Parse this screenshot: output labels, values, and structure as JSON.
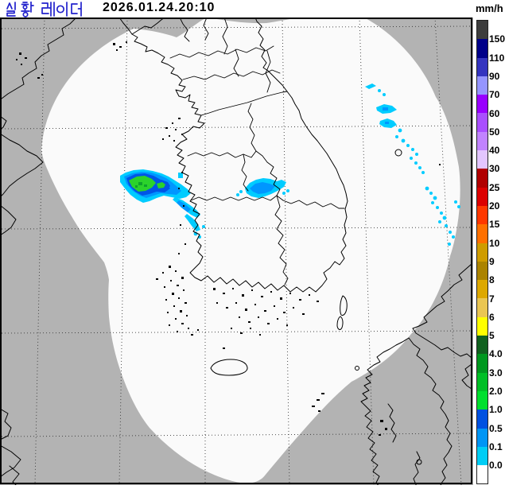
{
  "header": {
    "title": "실황 레이더",
    "timestamp": "2026.01.24.20:10",
    "unit_label": "mm/h"
  },
  "legend": {
    "unit": "mm/h",
    "labels": [
      "150",
      "110",
      "90",
      "70",
      "60",
      "50",
      "40",
      "30",
      "25",
      "20",
      "15",
      "10",
      "9",
      "8",
      "7",
      "6",
      "5",
      "4.0",
      "3.0",
      "2.0",
      "1.0",
      "0.5",
      "0.1",
      "0.0"
    ],
    "colors": [
      "#3d3d3d",
      "#000089",
      "#3434bf",
      "#9595ff",
      "#9800ff",
      "#a94fff",
      "#c183ff",
      "#e3c6ff",
      "#b00000",
      "#dc0000",
      "#ff3800",
      "#ff7000",
      "#cf9c00",
      "#ab8300",
      "#dda800",
      "#eac653",
      "#ffff00",
      "#11611f",
      "#00981f",
      "#00bf26",
      "#00df2e",
      "#0051e1",
      "#0095f5",
      "#00cdf5",
      "#ffffff"
    ]
  },
  "map": {
    "sea_color": "#b3b3b3",
    "coverage_color": "#fafafa",
    "line_color": "#000000",
    "graticule_color": "#3a3a3a",
    "echo_colors": {
      "cyan_0_0": "#00ccff",
      "blue_0_1": "#0096ff",
      "blue_0_5": "#0055e6",
      "green_1": "#2bd22b",
      "green_3": "#0da32a"
    },
    "echoes": [
      {
        "name": "west-coast-cell",
        "region": "Chungnam west coast"
      },
      {
        "name": "inland-cell",
        "region": "Chungbuk inland"
      },
      {
        "name": "east-sea-band",
        "region": "East Sea"
      }
    ]
  }
}
